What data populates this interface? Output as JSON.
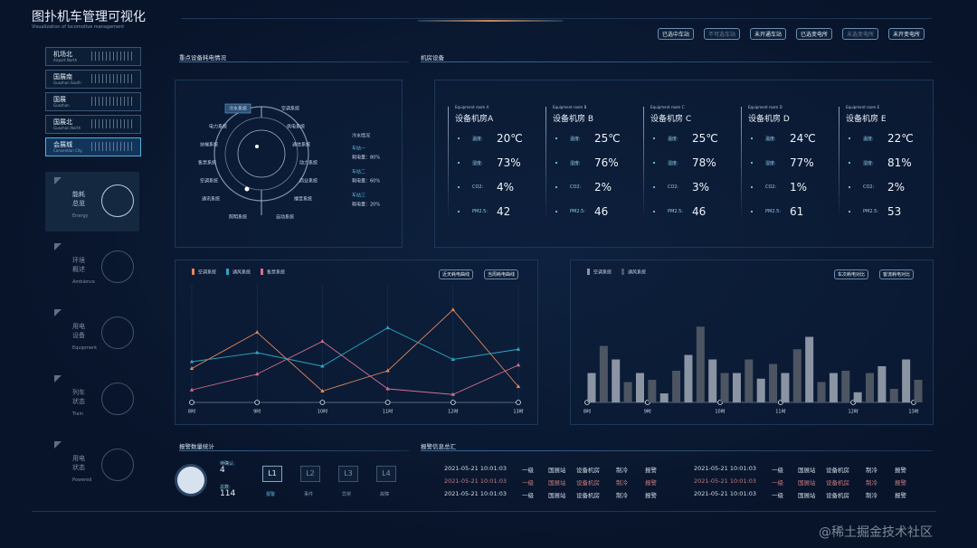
{
  "header": {
    "title": "图扑机车管理可视化",
    "subtitle": "Visualization of locomotive management"
  },
  "filters": [
    "已选中车站",
    "不可选车站",
    "未开通车站",
    "已选变电所",
    "未选变电所",
    "未开变电所"
  ],
  "stations": [
    {
      "name": "机场北",
      "en": "Airport North"
    },
    {
      "name": "国展南",
      "en": "Guozhan South"
    },
    {
      "name": "国展",
      "en": "Guozhan"
    },
    {
      "name": "国展北",
      "en": "Guozhan North"
    },
    {
      "name": "会展城",
      "en": "Convention City"
    }
  ],
  "nav": [
    {
      "name": "能耗总览",
      "en": "Energy"
    },
    {
      "name": "环境概述",
      "en": "Ambience"
    },
    {
      "name": "用电设备",
      "en": "Equipment"
    },
    {
      "name": "列车状态",
      "en": "Train"
    },
    {
      "name": "用电状态",
      "en": "Powered"
    }
  ],
  "panels": {
    "energy": "重点设备耗电情况",
    "rooms": "机房设备",
    "alarm_count": "报警数量统计",
    "alarm_info": "报警信息总汇"
  },
  "systems": [
    "冷水系统",
    "电力系统",
    "扶梯系统",
    "售票系统",
    "空调系统",
    "通讯系统",
    "照明系统",
    "空调系统",
    "供电系统",
    "通信系统",
    "动力系统",
    "商业系统",
    "播音系统",
    "自动系统"
  ],
  "consumption": {
    "title": "冷水情况",
    "items": [
      {
        "name": "车站一",
        "value": "耗电量：80%"
      },
      {
        "name": "车站二",
        "value": "耗电量：60%"
      },
      {
        "name": "车站三",
        "value": "耗电量：20%"
      }
    ]
  },
  "rooms": [
    {
      "en": "Equipment room A",
      "name": "设备机房A",
      "metrics": [
        {
          "label": "温度:",
          "value": "20℃"
        },
        {
          "label": "湿度:",
          "value": "73%"
        },
        {
          "label": "CO2:",
          "value": "4%"
        },
        {
          "label": "PM2.5:",
          "value": "42"
        }
      ]
    },
    {
      "en": "Equipment room B",
      "name": "设备机房 B",
      "metrics": [
        {
          "label": "温度:",
          "value": "25℃"
        },
        {
          "label": "湿度:",
          "value": "76%"
        },
        {
          "label": "CO2:",
          "value": "2%"
        },
        {
          "label": "PM2.5:",
          "value": "46"
        }
      ]
    },
    {
      "en": "Equipment room C",
      "name": "设备机房 C",
      "metrics": [
        {
          "label": "温度:",
          "value": "25℃"
        },
        {
          "label": "湿度:",
          "value": "78%"
        },
        {
          "label": "CO2:",
          "value": "3%"
        },
        {
          "label": "PM2.5:",
          "value": "46"
        }
      ]
    },
    {
      "en": "Equipment room D",
      "name": "设备机房 D",
      "metrics": [
        {
          "label": "温度:",
          "value": "24℃"
        },
        {
          "label": "湿度:",
          "value": "77%"
        },
        {
          "label": "CO2:",
          "value": "1%"
        },
        {
          "label": "PM2.5:",
          "value": "61"
        }
      ]
    },
    {
      "en": "Equipment room E",
      "name": "设备机房 E",
      "metrics": [
        {
          "label": "温度:",
          "value": "22℃"
        },
        {
          "label": "湿度:",
          "value": "81%"
        },
        {
          "label": "CO2:",
          "value": "2%"
        },
        {
          "label": "PM2.5:",
          "value": "53"
        }
      ]
    }
  ],
  "chart_data": [
    {
      "type": "line",
      "buttons": [
        "近天耗电曲线",
        "当周耗电曲线"
      ],
      "categories": [
        "8时",
        "9时",
        "10时",
        "11时",
        "12时",
        "13时"
      ],
      "ylim": [
        0,
        100
      ],
      "series": [
        {
          "name": "空调系统",
          "color": "#e0875a",
          "values": [
            30,
            62,
            10,
            28,
            82,
            14
          ]
        },
        {
          "name": "通风系统",
          "color": "#2aa7c0",
          "values": [
            36,
            44,
            32,
            66,
            38,
            47
          ]
        },
        {
          "name": "售票系统",
          "color": "#d4708e",
          "values": [
            11,
            25,
            54,
            12,
            7,
            33
          ]
        }
      ]
    },
    {
      "type": "bar",
      "buttons": [
        "车次耗电对比",
        "客流耗电对比"
      ],
      "categories": [
        "8时",
        null,
        null,
        null,
        null,
        "9时",
        null,
        null,
        null,
        null,
        null,
        "10时",
        null,
        null,
        null,
        null,
        "11时",
        null,
        null,
        null,
        null,
        null,
        "12时",
        null,
        null,
        null,
        null,
        "13时"
      ],
      "ylim": [
        0,
        100
      ],
      "series": [
        {
          "name": "空调系统",
          "color": "#8a94a3",
          "values": [
            26,
            null,
            38,
            null,
            26,
            null,
            8,
            null,
            42,
            null,
            38,
            null,
            26,
            null,
            21,
            null,
            26,
            null,
            58,
            null,
            26,
            null,
            9,
            null,
            32,
            null,
            38,
            null
          ]
        },
        {
          "name": "通风系统",
          "color": "#4d5562",
          "values": [
            null,
            50,
            null,
            18,
            null,
            20,
            null,
            28,
            null,
            67,
            null,
            26,
            null,
            38,
            null,
            34,
            null,
            47,
            null,
            18,
            null,
            28,
            null,
            26,
            null,
            12,
            null,
            20
          ]
        }
      ]
    }
  ],
  "alarm_stats": {
    "pending_label": "待确认:",
    "pending": 4,
    "total_label": "总数:",
    "total": 114,
    "levels": [
      {
        "code": "L1",
        "name": "报警"
      },
      {
        "code": "L2",
        "name": "事件"
      },
      {
        "code": "L3",
        "name": "异常"
      },
      {
        "code": "L4",
        "name": "故障"
      }
    ]
  },
  "alarms": [
    [
      "2021-05-21 10:01:03",
      "一级",
      "国展站",
      "设备机房",
      "制冷",
      "报警"
    ],
    [
      "2021-05-21 10:01:03",
      "一级",
      "国展站",
      "设备机房",
      "制冷",
      "报警"
    ],
    [
      "2021-05-21 10:01:03",
      "一级",
      "国展站",
      "设备机房",
      "制冷",
      "报警"
    ],
    [
      "2021-05-21 10:01:03",
      "一级",
      "国展站",
      "设备机房",
      "制冷",
      "报警"
    ],
    [
      "2021-05-21 10:01:03",
      "一级",
      "国展站",
      "设备机房",
      "制冷",
      "报警"
    ],
    [
      "2021-05-21 10:01:03",
      "一级",
      "国展站",
      "设备机房",
      "制冷",
      "报警"
    ]
  ],
  "watermark": "@稀土掘金技术社区"
}
